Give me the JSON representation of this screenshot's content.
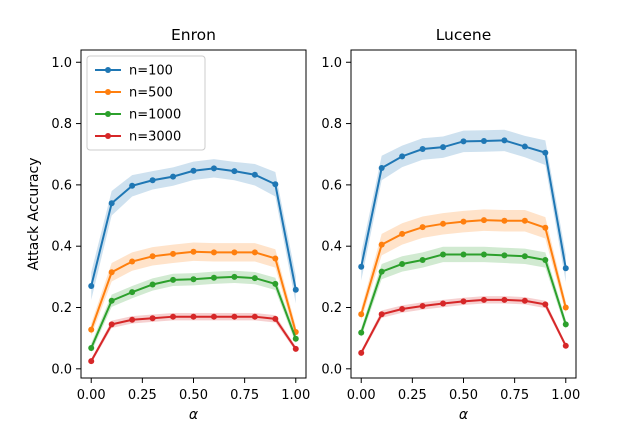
{
  "chart_data": [
    {
      "type": "line",
      "title": "Enron",
      "xlabel": "α",
      "ylabel": "Attack Accuracy",
      "x": [
        0.0,
        0.1,
        0.2,
        0.3,
        0.4,
        0.5,
        0.6,
        0.7,
        0.8,
        0.9,
        1.0
      ],
      "xlim": [
        -0.05,
        1.05
      ],
      "ylim": [
        -0.03,
        1.04
      ],
      "xticks": [
        "0.00",
        "0.25",
        "0.50",
        "0.75",
        "1.00"
      ],
      "yticks": [
        "0.0",
        "0.2",
        "0.4",
        "0.6",
        "0.8",
        "1.0"
      ],
      "legend_position": "top-left",
      "grid": false,
      "series": [
        {
          "name": "n=100",
          "color": "#1f77b4",
          "values": [
            0.27,
            0.54,
            0.597,
            0.615,
            0.627,
            0.646,
            0.654,
            0.645,
            0.633,
            0.602,
            0.258
          ],
          "band": [
            0.045,
            0.04,
            0.035,
            0.03,
            0.03,
            0.03,
            0.03,
            0.03,
            0.035,
            0.04,
            0.045
          ]
        },
        {
          "name": "n=500",
          "color": "#ff7f0e",
          "values": [
            0.128,
            0.315,
            0.35,
            0.367,
            0.375,
            0.382,
            0.38,
            0.38,
            0.38,
            0.36,
            0.12
          ],
          "band": [
            0.02,
            0.03,
            0.03,
            0.03,
            0.03,
            0.03,
            0.03,
            0.03,
            0.03,
            0.03,
            0.02
          ]
        },
        {
          "name": "n=1000",
          "color": "#2ca02c",
          "values": [
            0.068,
            0.222,
            0.25,
            0.275,
            0.29,
            0.292,
            0.297,
            0.3,
            0.296,
            0.277,
            0.098
          ],
          "band": [
            0.015,
            0.02,
            0.02,
            0.02,
            0.02,
            0.02,
            0.02,
            0.02,
            0.02,
            0.02,
            0.015
          ]
        },
        {
          "name": "n=3000",
          "color": "#d62728",
          "values": [
            0.025,
            0.145,
            0.16,
            0.165,
            0.17,
            0.17,
            0.17,
            0.17,
            0.17,
            0.163,
            0.065
          ],
          "band": [
            0.008,
            0.012,
            0.012,
            0.012,
            0.012,
            0.012,
            0.012,
            0.012,
            0.012,
            0.012,
            0.008
          ]
        }
      ]
    },
    {
      "type": "line",
      "title": "Lucene",
      "xlabel": "α",
      "ylabel": "",
      "x": [
        0.0,
        0.1,
        0.2,
        0.3,
        0.4,
        0.5,
        0.6,
        0.7,
        0.8,
        0.9,
        1.0
      ],
      "xlim": [
        -0.05,
        1.05
      ],
      "ylim": [
        -0.03,
        1.04
      ],
      "xticks": [
        "0.00",
        "0.25",
        "0.50",
        "0.75",
        "1.00"
      ],
      "yticks": [
        "0.0",
        "0.2",
        "0.4",
        "0.6",
        "0.8",
        "1.0"
      ],
      "grid": false,
      "series": [
        {
          "name": "n=100",
          "color": "#1f77b4",
          "values": [
            0.333,
            0.655,
            0.693,
            0.717,
            0.723,
            0.742,
            0.743,
            0.745,
            0.725,
            0.705,
            0.328
          ],
          "band": [
            0.045,
            0.04,
            0.035,
            0.035,
            0.035,
            0.035,
            0.035,
            0.035,
            0.035,
            0.04,
            0.045
          ]
        },
        {
          "name": "n=500",
          "color": "#ff7f0e",
          "values": [
            0.178,
            0.405,
            0.44,
            0.462,
            0.473,
            0.48,
            0.485,
            0.483,
            0.483,
            0.46,
            0.2
          ],
          "band": [
            0.02,
            0.035,
            0.035,
            0.035,
            0.035,
            0.035,
            0.035,
            0.035,
            0.035,
            0.035,
            0.02
          ]
        },
        {
          "name": "n=1000",
          "color": "#2ca02c",
          "values": [
            0.118,
            0.317,
            0.342,
            0.355,
            0.373,
            0.373,
            0.373,
            0.37,
            0.367,
            0.355,
            0.145
          ],
          "band": [
            0.015,
            0.025,
            0.025,
            0.025,
            0.025,
            0.025,
            0.025,
            0.025,
            0.025,
            0.025,
            0.015
          ]
        },
        {
          "name": "n=3000",
          "color": "#d62728",
          "values": [
            0.052,
            0.178,
            0.195,
            0.205,
            0.213,
            0.22,
            0.225,
            0.225,
            0.222,
            0.21,
            0.075
          ],
          "band": [
            0.008,
            0.012,
            0.012,
            0.012,
            0.012,
            0.012,
            0.012,
            0.012,
            0.012,
            0.012,
            0.008
          ]
        }
      ]
    }
  ]
}
